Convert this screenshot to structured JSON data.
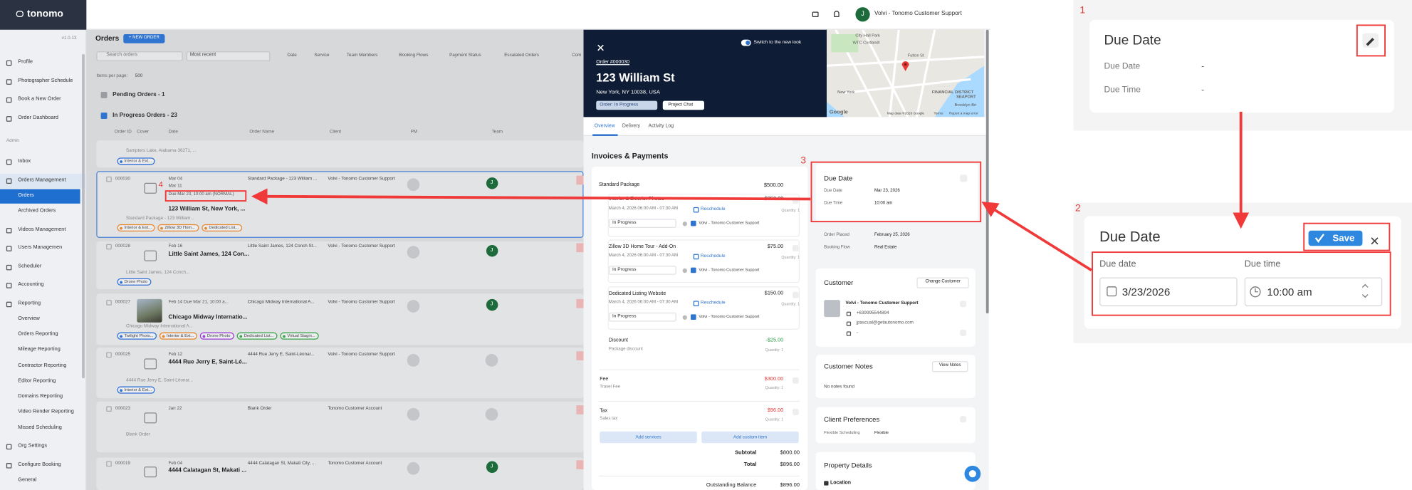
{
  "sidebar": {
    "logo": "tonomo",
    "version": "v1.0.13",
    "items": [
      "Profile",
      "Photographer Schedule",
      "Book a New Order",
      "Order Dashboard",
      "Admin",
      "Inbox",
      "Orders Management",
      "Orders",
      "Archived Orders",
      "Videos Management",
      "Users Managemen",
      "Scheduler",
      "Accounting",
      "Reporting",
      "Overview",
      "Orders Reporting",
      "Mileage Reporting",
      "Contractor Reporting",
      "Editor Reporting",
      "Domains Reporting",
      "Video Render Reporting",
      "Missed Scheduling",
      "Org Settings",
      "Configure Booking",
      "General"
    ]
  },
  "topbar": {
    "avatar": "J",
    "user": "Volvi - Tonomo Customer Support"
  },
  "orders": {
    "title": "Orders",
    "new_order": "+ NEW ORDER",
    "search": "Search orders",
    "sort": "Most recent",
    "filters": [
      "Date",
      "Service",
      "Team Members",
      "Booking Flows",
      "Payment Status",
      "Escalated Orders",
      "Com"
    ],
    "items_per_page": "Items per page:",
    "per_page_value": "500",
    "pending": "Pending Orders - 1",
    "in_progress": "In Progress Orders - 23",
    "columns": [
      "Order ID",
      "Cover",
      "Date",
      "Order Name",
      "Client",
      "PM",
      "Team"
    ],
    "rows": [
      {
        "subtitle": "Sampters Lake, Alabama 36271, ...",
        "tags": [
          {
            "label": "Interior & Ext...",
            "color": "#2f6fd6"
          }
        ]
      },
      {
        "id": "000030",
        "date": "Mar 04",
        "date2": "Mar 11",
        "due": "Due Mar 23, 10:00 am (NORMAL)",
        "title": "123 William St, New York, ...",
        "order_name": "Standard Package - 123 William ...",
        "client": "Volvi - Tonomo Customer Support",
        "team": "J",
        "subtitle": "Standard Package - 123 William...",
        "tags": [
          {
            "label": "Interior & Ext...",
            "color": "#e8852b"
          },
          {
            "label": "Zillow 3D Hom...",
            "color": "#e8852b"
          },
          {
            "label": "Dedicated List...",
            "color": "#e8852b"
          }
        ]
      },
      {
        "id": "000028",
        "date": "Feb 16",
        "title": "Little Saint James, 124 Con...",
        "order_name": "Little Saint James, 124 Conch St...",
        "client": "Volvi - Tonomo Customer Support",
        "team": "J",
        "subtitle": "Little Saint James, 124 Conch...",
        "tags": [
          {
            "label": "Drone Photo",
            "color": "#2f6fd6"
          }
        ]
      },
      {
        "id": "000027",
        "date": "Feb 14 Due Mar 21, 10:00 a...",
        "title": "Chicago Midway Internatio...",
        "order_name": "Chicago Midway International A...",
        "client": "Volvi - Tonomo Customer Support",
        "team": "J",
        "subtitle": "Chicago Midway International A...",
        "tags": [
          {
            "label": "Twilight Photo...",
            "color": "#2f6fd6"
          },
          {
            "label": "Interior & Ext...",
            "color": "#e8852b"
          },
          {
            "label": "Drone Photo",
            "color": "#9b3fd1"
          },
          {
            "label": "Dedicated List...",
            "color": "#3aa64a"
          },
          {
            "label": "Virtual Stagin...",
            "color": "#3aa64a"
          }
        ]
      },
      {
        "id": "000025",
        "date": "Feb 12",
        "title": "4444 Rue Jerry E, Saint-Lé...",
        "order_name": "4444 Rue Jerry E, Saint-Léonar...",
        "client": "Volvi - Tonomo Customer Support",
        "subtitle": "4444 Rue Jerry E, Saint-Léonar...",
        "tags": [
          {
            "label": "Interior & Ext...",
            "color": "#2f6fd6"
          }
        ]
      },
      {
        "id": "000023",
        "date": "Jan 22",
        "order_name": "Blank Order",
        "client": "Tonomo Customer Account",
        "subtitle": "Blank Order"
      },
      {
        "id": "000019",
        "date": "Feb 04",
        "title": "4444 Calatagan St, Makati ...",
        "order_name": "4444 Calatagan St, Makati City, ...",
        "client": "Tonomo Customer Account",
        "team": "J"
      }
    ]
  },
  "detail": {
    "switch": "Switch to the new look",
    "order_no": "Order #000030",
    "address": "123 William St",
    "city": "New York, NY 10038, USA",
    "status": "Order: In Progress",
    "chat": "Project Chat",
    "map": {
      "labels": [
        "City Hall Park",
        "WTC Cortlandt",
        "Fulton St",
        "New York",
        "FINANCIAL DISTRICT",
        "SEAPORT",
        "Brooklyn Bri"
      ],
      "google": "Google",
      "attribution": "Map data ©2026 Google",
      "terms": "Terms",
      "report": "Report a map error"
    },
    "tabs": [
      "Overview",
      "Delivery",
      "Activity Log"
    ],
    "invoice": {
      "title": "Invoices & Payments",
      "package": "Standard Package",
      "package_price": "$500.00",
      "items": [
        {
          "name": "Interior & Exterior Photos",
          "price": "$350.00",
          "date": "March 4, 2026 06:00 AM - 07:30 AM",
          "reschedule": "Reschedule",
          "status": "In Progress",
          "assignee": "Volvi - Tonomo Customer Support",
          "qty": "Quantity: 1"
        },
        {
          "name": "Zillow 3D Home Tour - Add-On",
          "price": "$75.00",
          "date": "March 4, 2026 06:00 AM - 07:30 AM",
          "reschedule": "Reschedule",
          "status": "In Progress",
          "assignee": "Volvi - Tonomo Customer Support",
          "qty": "Quantity: 1"
        },
        {
          "name": "Dedicated Listing Website",
          "price": "$150.00",
          "date": "March 4, 2026 06:00 AM - 07:30 AM",
          "reschedule": "Reschedule",
          "status": "In Progress",
          "assignee": "Volvi - Tonomo Customer Support",
          "qty": "Quantity: 1"
        }
      ],
      "discount": {
        "name": "Discount",
        "sub": "Package discount",
        "price": "-$25.00",
        "qty": "Quantity: 1"
      },
      "fee": {
        "name": "Fee",
        "sub": "Travel Fee",
        "price": "$300.00",
        "qty": "Quantity: 1"
      },
      "tax": {
        "name": "Tax",
        "sub": "Sales tax",
        "price": "$96.00",
        "qty": "Quantity: 1"
      },
      "add_services": "Add services",
      "add_custom": "Add custom item",
      "subtotal_label": "Subtotal",
      "subtotal": "$800.00",
      "total_label": "Total",
      "total": "$896.00",
      "balance_label": "Outstanding Balance",
      "balance": "$896.00"
    },
    "due": {
      "title": "Due Date",
      "date_label": "Due Date",
      "date": "Mar 23, 2026",
      "time_label": "Due Time",
      "time": "10:00 am"
    },
    "placed_label": "Order Placed",
    "placed": "February 25, 2026",
    "flow_label": "Booking Flow",
    "flow": "Real Estate",
    "customer": {
      "title": "Customer",
      "change": "Change Customer",
      "name": "Volvi - Tonomo Customer Support",
      "phone": "+639995544894",
      "email": "jpascual@getautonomo.com",
      "other": "-"
    },
    "notes": {
      "title": "Customer Notes",
      "view": "View Notes",
      "empty": "No notes found"
    },
    "prefs": {
      "title": "Client Preferences",
      "label": "Flexible Scheduling",
      "value": "Flexible"
    },
    "property": {
      "title": "Property Details",
      "location": "Location"
    }
  },
  "callouts": {
    "n1": "1",
    "n2": "2",
    "n3": "3",
    "n4": "4",
    "panel1": {
      "title": "Due Date",
      "date_label": "Due Date",
      "date": "-",
      "time_label": "Due Time",
      "time": "-"
    },
    "panel2": {
      "title": "Due Date",
      "save": "Save",
      "date_label": "Due date",
      "date": "3/23/2026",
      "time_label": "Due time",
      "time": "10:00 am"
    }
  }
}
